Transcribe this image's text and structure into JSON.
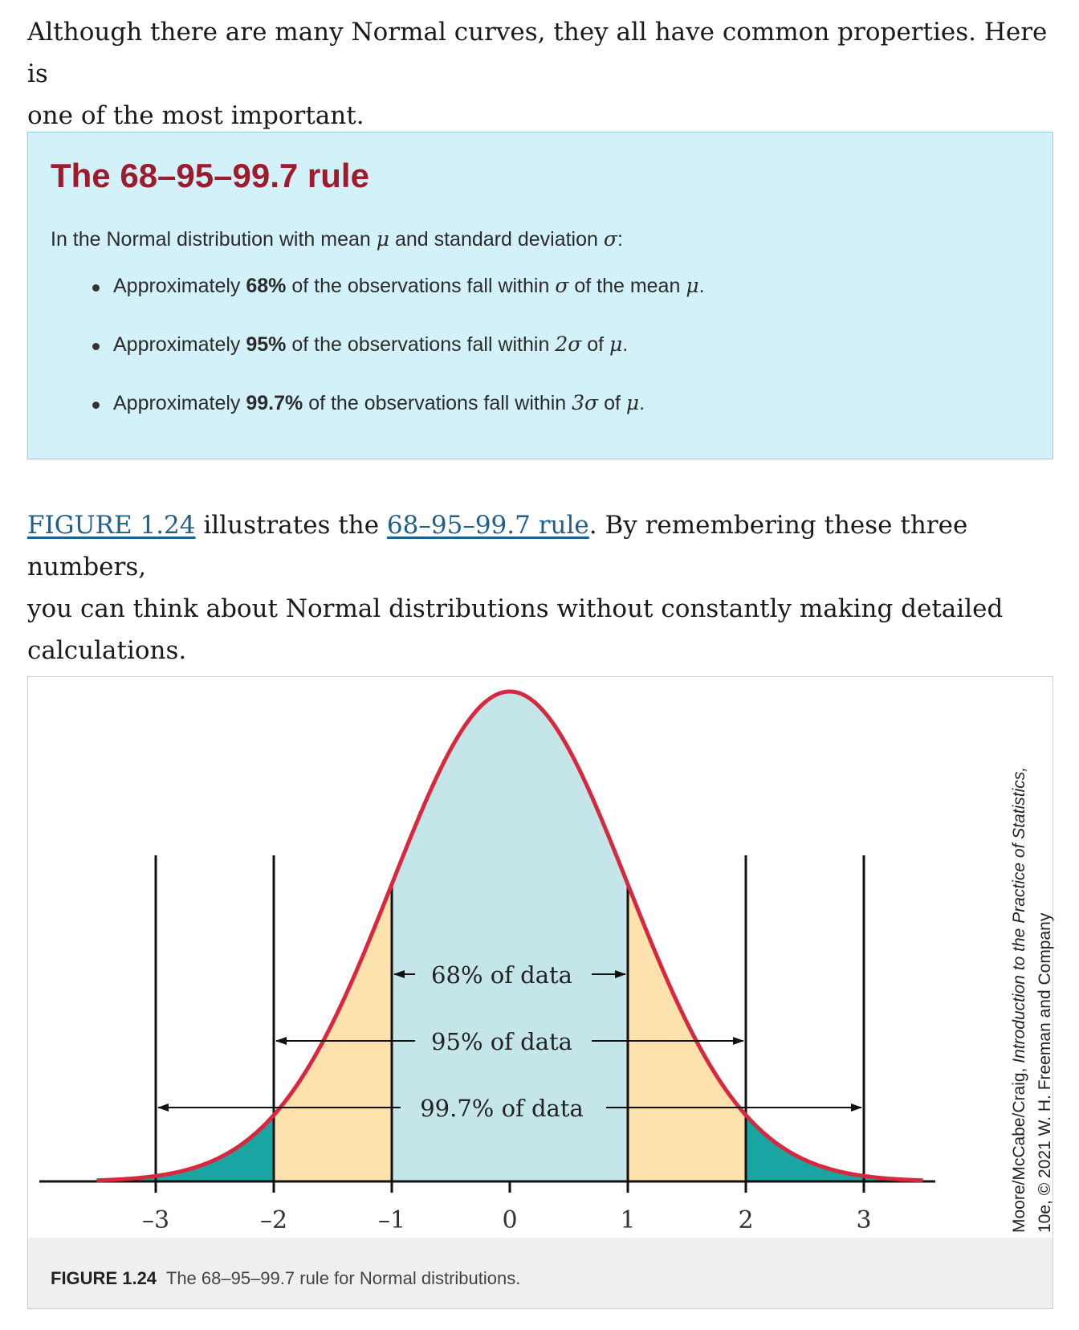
{
  "intro": {
    "line1": "Although there are many Normal curves, they all have common properties. Here is",
    "line2": "one of the most important."
  },
  "rule_box": {
    "title": "The 68–95–99.7 rule",
    "lead_before": "In the Normal distribution with mean ",
    "lead_mu": "μ",
    "lead_mid": " and standard deviation ",
    "lead_sigma": "σ",
    "lead_end": ":",
    "items": [
      {
        "pre": "Approximately ",
        "pct": "68%",
        "mid": " of the observations fall within ",
        "sym": "σ",
        "post": " of the mean ",
        "mu": "μ",
        "end": "."
      },
      {
        "pre": "Approximately ",
        "pct": "95%",
        "mid": " of the observations fall within ",
        "sym": "2σ",
        "post": " of ",
        "mu": "μ",
        "end": "."
      },
      {
        "pre": "Approximately ",
        "pct": "99.7%",
        "mid": " of the observations fall within ",
        "sym": "3σ",
        "post": " of ",
        "mu": "μ",
        "end": "."
      }
    ]
  },
  "after_text": {
    "link1": "FIGURE 1.24",
    "t1": " illustrates the ",
    "link2": "68–95–99.7 rule",
    "t2": ". By remembering these three numbers,",
    "line2": "you can think about Normal distributions without constantly making detailed",
    "line3": "calculations."
  },
  "figure": {
    "caption_label": "FIGURE 1.24",
    "caption_text": "The 68–95–99.7 rule for Normal distributions.",
    "credit_line1_pre": "Moore/McCabe/Craig, ",
    "credit_line1_title": "Introduction to the Practice of Statistics,",
    "credit_line2": "10e, © 2021 W. H. Freeman and Company"
  },
  "chart_data": {
    "type": "area",
    "distribution": "standard normal",
    "x_ticks": [
      -3,
      -2,
      -1,
      0,
      1,
      2,
      3
    ],
    "x_tick_labels": [
      "–3",
      "–2",
      "–1",
      "0",
      "1",
      "2",
      "3"
    ],
    "xlim": [
      -3.5,
      3.5
    ],
    "regions": [
      {
        "from": -1,
        "to": 1,
        "color": "#c4e6e8",
        "label": "68% of data",
        "value": 68
      },
      {
        "from": -2,
        "to": 2,
        "color": "#fde2ad",
        "label": "95% of data",
        "value": 95
      },
      {
        "from": -3,
        "to": 3,
        "color": "#1aa5a2",
        "label": "99.7% of data",
        "value": 99.7
      }
    ],
    "curve_color": "#d8283f"
  }
}
